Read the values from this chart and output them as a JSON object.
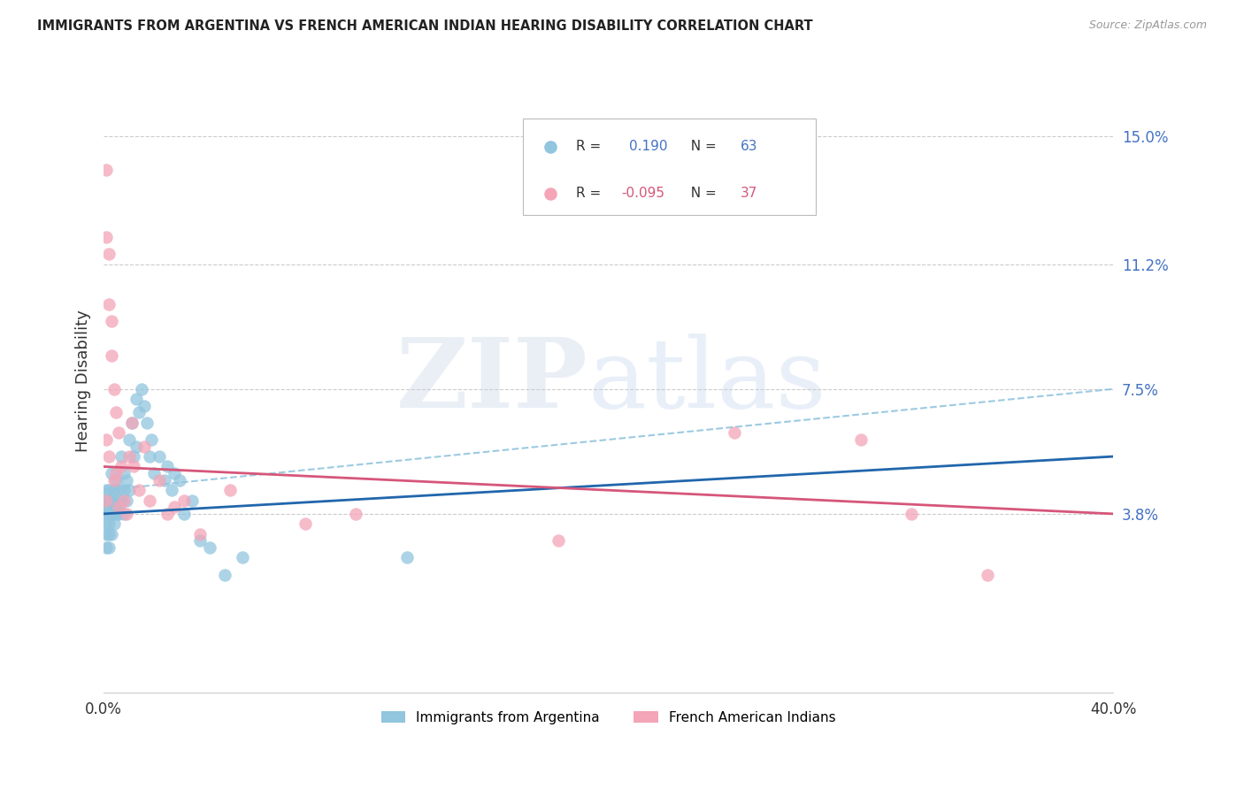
{
  "title": "IMMIGRANTS FROM ARGENTINA VS FRENCH AMERICAN INDIAN HEARING DISABILITY CORRELATION CHART",
  "source": "Source: ZipAtlas.com",
  "ylabel": "Hearing Disability",
  "ytick_labels": [
    "3.8%",
    "7.5%",
    "11.2%",
    "15.0%"
  ],
  "ytick_values": [
    0.038,
    0.075,
    0.112,
    0.15
  ],
  "xlim": [
    0.0,
    0.4
  ],
  "ylim": [
    -0.015,
    0.17
  ],
  "legend_blue_r": "0.190",
  "legend_blue_n": "63",
  "legend_pink_r": "-0.095",
  "legend_pink_n": "37",
  "legend_label_blue": "Immigrants from Argentina",
  "legend_label_pink": "French American Indians",
  "blue_color": "#92c5de",
  "pink_color": "#f4a5b8",
  "blue_line_color": "#2166ac",
  "pink_line_color": "#d6567a",
  "blue_r_color": "#4472c4",
  "pink_r_color": "#d6567a",
  "blue_scatter_x": [
    0.001,
    0.001,
    0.001,
    0.001,
    0.001,
    0.001,
    0.001,
    0.002,
    0.002,
    0.002,
    0.002,
    0.002,
    0.002,
    0.002,
    0.003,
    0.003,
    0.003,
    0.003,
    0.003,
    0.004,
    0.004,
    0.004,
    0.004,
    0.005,
    0.005,
    0.005,
    0.005,
    0.006,
    0.006,
    0.006,
    0.007,
    0.007,
    0.008,
    0.008,
    0.008,
    0.009,
    0.009,
    0.01,
    0.01,
    0.011,
    0.012,
    0.013,
    0.013,
    0.014,
    0.015,
    0.016,
    0.017,
    0.018,
    0.019,
    0.02,
    0.022,
    0.024,
    0.025,
    0.027,
    0.028,
    0.03,
    0.032,
    0.035,
    0.038,
    0.042,
    0.048,
    0.055,
    0.12
  ],
  "blue_scatter_y": [
    0.035,
    0.038,
    0.04,
    0.042,
    0.045,
    0.032,
    0.028,
    0.038,
    0.04,
    0.035,
    0.042,
    0.032,
    0.028,
    0.045,
    0.04,
    0.042,
    0.038,
    0.032,
    0.05,
    0.038,
    0.04,
    0.035,
    0.045,
    0.04,
    0.042,
    0.038,
    0.048,
    0.04,
    0.038,
    0.045,
    0.042,
    0.055,
    0.045,
    0.05,
    0.038,
    0.042,
    0.048,
    0.06,
    0.045,
    0.065,
    0.055,
    0.072,
    0.058,
    0.068,
    0.075,
    0.07,
    0.065,
    0.055,
    0.06,
    0.05,
    0.055,
    0.048,
    0.052,
    0.045,
    0.05,
    0.048,
    0.038,
    0.042,
    0.03,
    0.028,
    0.02,
    0.025,
    0.025
  ],
  "pink_scatter_x": [
    0.001,
    0.001,
    0.001,
    0.001,
    0.002,
    0.002,
    0.002,
    0.003,
    0.003,
    0.004,
    0.004,
    0.005,
    0.005,
    0.006,
    0.006,
    0.007,
    0.008,
    0.009,
    0.01,
    0.011,
    0.012,
    0.014,
    0.016,
    0.018,
    0.022,
    0.025,
    0.028,
    0.032,
    0.038,
    0.05,
    0.08,
    0.1,
    0.18,
    0.25,
    0.3,
    0.32,
    0.35
  ],
  "pink_scatter_y": [
    0.14,
    0.12,
    0.06,
    0.042,
    0.115,
    0.1,
    0.055,
    0.095,
    0.085,
    0.075,
    0.048,
    0.068,
    0.05,
    0.062,
    0.04,
    0.052,
    0.042,
    0.038,
    0.055,
    0.065,
    0.052,
    0.045,
    0.058,
    0.042,
    0.048,
    0.038,
    0.04,
    0.042,
    0.032,
    0.045,
    0.035,
    0.038,
    0.03,
    0.062,
    0.06,
    0.038,
    0.02
  ]
}
